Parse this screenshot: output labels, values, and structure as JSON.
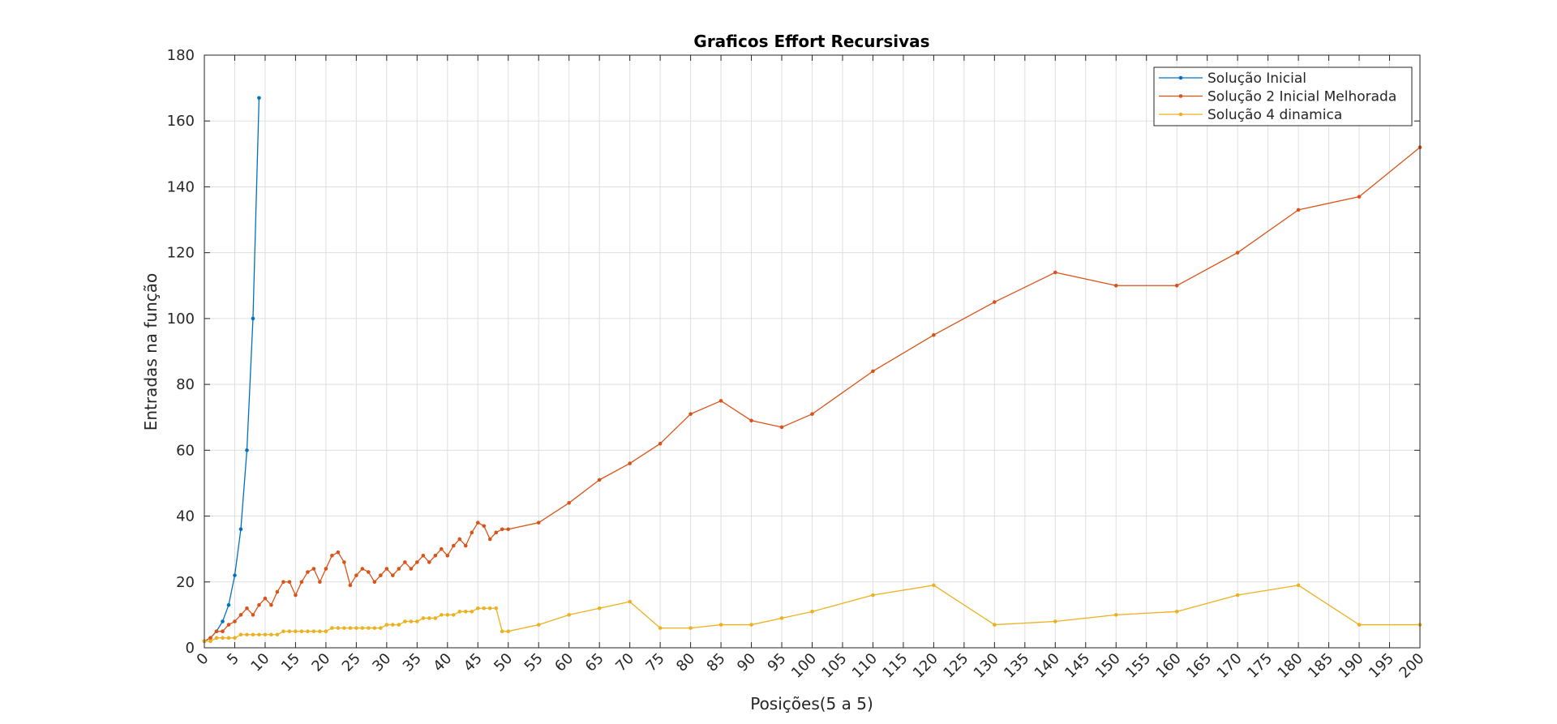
{
  "chart_data": {
    "type": "line",
    "title": "Graficos Effort Recursivas",
    "xlabel": "Posições(5 a 5)",
    "ylabel": "Entradas na função",
    "xlim": [
      0,
      200
    ],
    "ylim": [
      0,
      180
    ],
    "xticks": [
      0,
      5,
      10,
      15,
      20,
      25,
      30,
      35,
      40,
      45,
      50,
      55,
      60,
      65,
      70,
      75,
      80,
      85,
      90,
      95,
      100,
      105,
      110,
      115,
      120,
      125,
      130,
      135,
      140,
      145,
      150,
      155,
      160,
      165,
      170,
      175,
      180,
      185,
      190,
      195,
      200
    ],
    "yticks": [
      0,
      20,
      40,
      60,
      80,
      100,
      120,
      140,
      160,
      180
    ],
    "grid": true,
    "legend_position": "top-right",
    "series": [
      {
        "name": "Solução Inicial",
        "color": "#0072BD",
        "x": [
          0,
          1,
          2,
          3,
          4,
          5,
          6,
          7,
          8,
          9,
          10
        ],
        "y": [
          2,
          3,
          5,
          8,
          13,
          22,
          36,
          60,
          100,
          167,
          null
        ],
        "marker": "dot"
      },
      {
        "name": "Solução 2 Inicial Melhorada",
        "color": "#D95319",
        "x": [
          0,
          1,
          2,
          3,
          4,
          5,
          6,
          7,
          8,
          9,
          10,
          11,
          12,
          13,
          14,
          15,
          16,
          17,
          18,
          19,
          20,
          21,
          22,
          23,
          24,
          25,
          26,
          27,
          28,
          29,
          30,
          31,
          32,
          33,
          34,
          35,
          36,
          37,
          38,
          39,
          40,
          41,
          42,
          43,
          44,
          45,
          46,
          47,
          48,
          49,
          50,
          55,
          60,
          65,
          70,
          75,
          80,
          85,
          90,
          95,
          100,
          110,
          120,
          130,
          140,
          150,
          160,
          170,
          180,
          190,
          200
        ],
        "y": [
          2,
          3,
          5,
          5,
          7,
          8,
          10,
          12,
          10,
          13,
          15,
          13,
          17,
          20,
          20,
          16,
          20,
          23,
          24,
          20,
          24,
          28,
          29,
          26,
          19,
          22,
          24,
          23,
          20,
          22,
          24,
          22,
          24,
          26,
          24,
          26,
          28,
          26,
          28,
          30,
          28,
          31,
          33,
          31,
          35,
          38,
          37,
          33,
          35,
          36,
          36,
          38,
          44,
          51,
          56,
          62,
          71,
          75,
          69,
          67,
          71,
          84,
          95,
          105,
          114,
          110,
          110,
          120,
          133,
          137,
          152
        ],
        "marker": "dot"
      },
      {
        "name": "Solução 4 dinamica",
        "color": "#EDB120",
        "x": [
          0,
          1,
          2,
          3,
          4,
          5,
          6,
          7,
          8,
          9,
          10,
          11,
          12,
          13,
          14,
          15,
          16,
          17,
          18,
          19,
          20,
          21,
          22,
          23,
          24,
          25,
          26,
          27,
          28,
          29,
          30,
          31,
          32,
          33,
          34,
          35,
          36,
          37,
          38,
          39,
          40,
          41,
          42,
          43,
          44,
          45,
          46,
          47,
          48,
          49,
          50,
          55,
          60,
          65,
          70,
          75,
          80,
          85,
          90,
          95,
          100,
          110,
          120,
          130,
          140,
          150,
          160,
          170,
          180,
          190,
          200
        ],
        "y": [
          2,
          2,
          3,
          3,
          3,
          3,
          4,
          4,
          4,
          4,
          4,
          4,
          4,
          5,
          5,
          5,
          5,
          5,
          5,
          5,
          5,
          6,
          6,
          6,
          6,
          6,
          6,
          6,
          6,
          6,
          7,
          7,
          7,
          8,
          8,
          8,
          9,
          9,
          9,
          10,
          10,
          10,
          11,
          11,
          11,
          12,
          12,
          12,
          12,
          5,
          5,
          7,
          10,
          12,
          14,
          6,
          6,
          7,
          7,
          9,
          11,
          16,
          19,
          7,
          8,
          10,
          11,
          16,
          19,
          7,
          7
        ],
        "marker": "dot"
      }
    ]
  }
}
